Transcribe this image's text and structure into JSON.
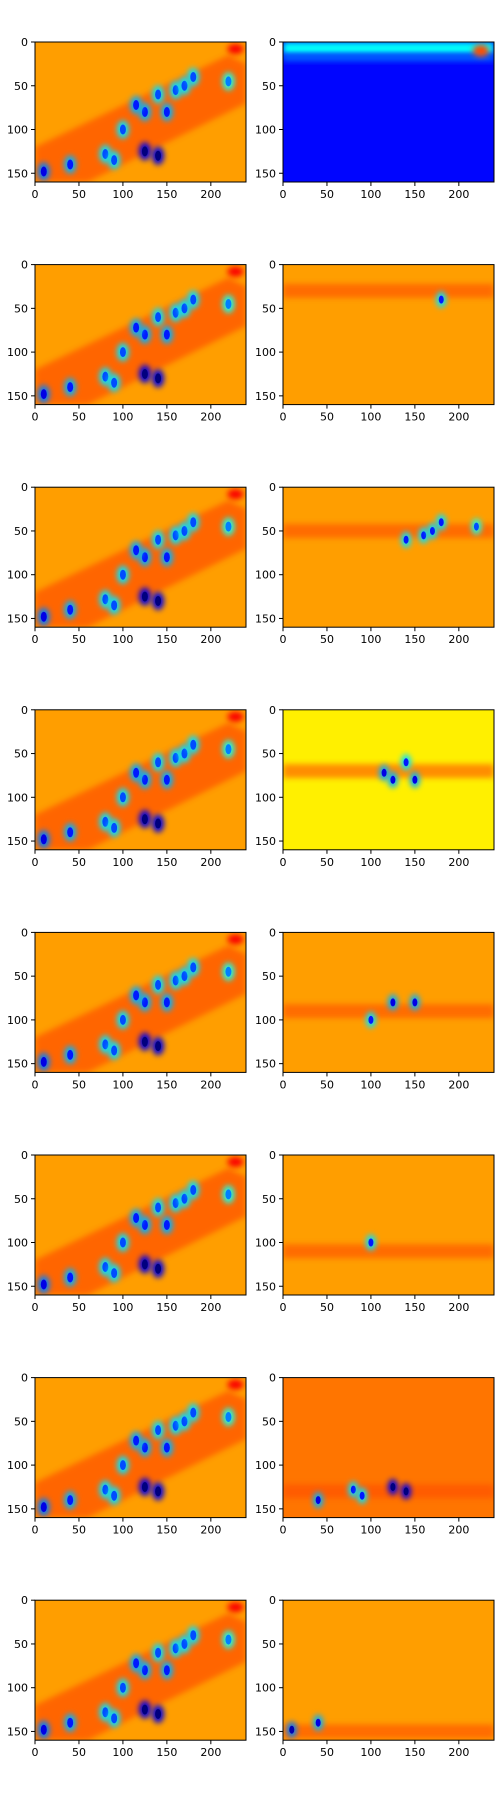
{
  "chart_data": {
    "type": "heatmap",
    "grid": [
      8,
      2
    ],
    "axis": {
      "xlim": [
        0,
        240
      ],
      "ylim_inverted": [
        160,
        0
      ],
      "xticks": [
        0,
        50,
        100,
        150,
        200
      ],
      "yticks": [
        0,
        50,
        100,
        150
      ],
      "grid": false
    },
    "colormap": "jet",
    "colors": {
      "jet": [
        "#00007f",
        "#0000ff",
        "#007fff",
        "#00ffff",
        "#7fff7f",
        "#ffff00",
        "#ff7f00",
        "#ff0000",
        "#7f0000"
      ]
    },
    "panels": [
      {
        "row": 0,
        "col": 0,
        "kind": "composite",
        "band_y": null,
        "bg_level": 0.72
      },
      {
        "row": 0,
        "col": 1,
        "kind": "band",
        "band_y": 8,
        "bg_level": 0.13
      },
      {
        "row": 1,
        "col": 0,
        "kind": "composite",
        "band_y": null,
        "bg_level": 0.72
      },
      {
        "row": 1,
        "col": 1,
        "kind": "band",
        "band_y": 30,
        "bg_level": 0.72
      },
      {
        "row": 2,
        "col": 0,
        "kind": "composite",
        "band_y": null,
        "bg_level": 0.72
      },
      {
        "row": 2,
        "col": 1,
        "kind": "band",
        "band_y": 50,
        "bg_level": 0.72
      },
      {
        "row": 3,
        "col": 0,
        "kind": "composite",
        "band_y": null,
        "bg_level": 0.72
      },
      {
        "row": 3,
        "col": 1,
        "kind": "band",
        "band_y": 70,
        "bg_level": 0.64
      },
      {
        "row": 4,
        "col": 0,
        "kind": "composite",
        "band_y": null,
        "bg_level": 0.72
      },
      {
        "row": 4,
        "col": 1,
        "kind": "band",
        "band_y": 90,
        "bg_level": 0.72
      },
      {
        "row": 5,
        "col": 0,
        "kind": "composite",
        "band_y": null,
        "bg_level": 0.72
      },
      {
        "row": 5,
        "col": 1,
        "kind": "band",
        "band_y": 110,
        "bg_level": 0.72
      },
      {
        "row": 6,
        "col": 0,
        "kind": "composite",
        "band_y": null,
        "bg_level": 0.72
      },
      {
        "row": 6,
        "col": 1,
        "kind": "band",
        "band_y": 130,
        "bg_level": 0.76
      },
      {
        "row": 7,
        "col": 0,
        "kind": "composite",
        "band_y": null,
        "bg_level": 0.72
      },
      {
        "row": 7,
        "col": 1,
        "kind": "band",
        "band_y": 150,
        "bg_level": 0.72
      }
    ],
    "blobs": [
      {
        "x": 10,
        "y": 148,
        "level": 0.25
      },
      {
        "x": 40,
        "y": 140,
        "level": 0.3
      },
      {
        "x": 80,
        "y": 128,
        "level": 0.35
      },
      {
        "x": 90,
        "y": 135,
        "level": 0.35
      },
      {
        "x": 125,
        "y": 125,
        "level": 0.1
      },
      {
        "x": 140,
        "y": 130,
        "level": 0.1
      },
      {
        "x": 100,
        "y": 100,
        "level": 0.35
      },
      {
        "x": 125,
        "y": 80,
        "level": 0.3
      },
      {
        "x": 115,
        "y": 72,
        "level": 0.3
      },
      {
        "x": 150,
        "y": 80,
        "level": 0.3
      },
      {
        "x": 160,
        "y": 55,
        "level": 0.35
      },
      {
        "x": 170,
        "y": 50,
        "level": 0.35
      },
      {
        "x": 180,
        "y": 40,
        "level": 0.35
      },
      {
        "x": 220,
        "y": 45,
        "level": 0.4
      },
      {
        "x": 140,
        "y": 60,
        "level": 0.35
      }
    ]
  }
}
